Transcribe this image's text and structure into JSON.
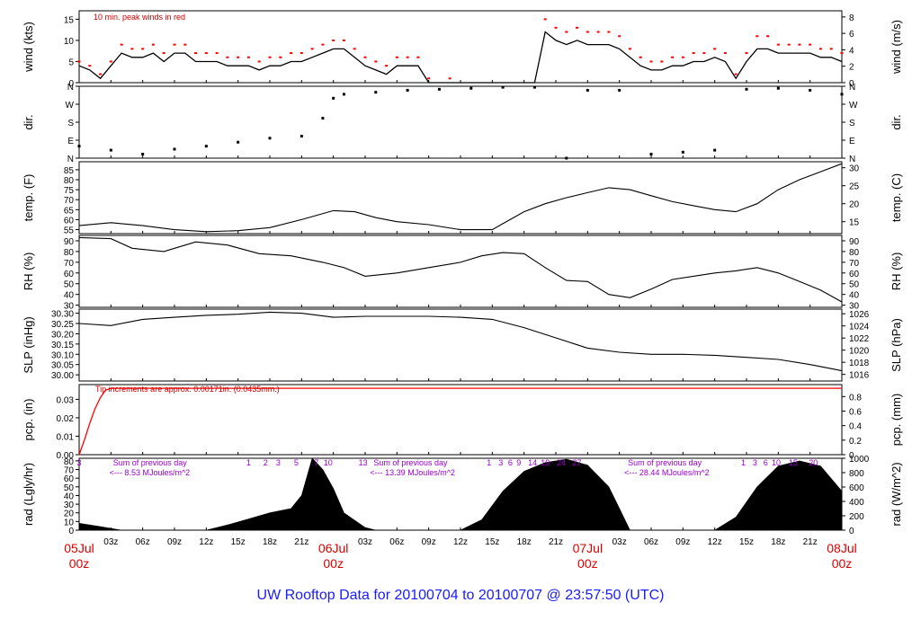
{
  "title": "UW Rooftop Data for 20100704  to  20100707 @ 23:57:50  (UTC)",
  "x_axis": {
    "range_hours": [
      0,
      72
    ],
    "hour_ticks": [
      "03z",
      "06z",
      "09z",
      "12z",
      "15z",
      "18z",
      "21z",
      "03z",
      "06z",
      "09z",
      "12z",
      "15z",
      "18z",
      "21z",
      "03z",
      "06z",
      "09z",
      "12z",
      "15z",
      "18z",
      "21z"
    ],
    "date_ticks": [
      {
        "date": "05Jul",
        "time": "00z"
      },
      {
        "date": "06Jul",
        "time": "00z"
      },
      {
        "date": "07Jul",
        "time": "00z"
      },
      {
        "date": "08Jul",
        "time": "00z"
      }
    ]
  },
  "colors": {
    "frame": "#000000",
    "peak": "#ff0000",
    "purple": "#9900cc",
    "title": "#1a1aff",
    "dates": "#dd0000"
  },
  "chart_data": [
    {
      "type": "line",
      "id": "wind",
      "ylabel": "wind (kts)",
      "ylabel_right": "wind (m/s)",
      "ylim": [
        0,
        17
      ],
      "yticks": [
        0,
        5,
        10,
        15
      ],
      "ylim_right": [
        0,
        8.75
      ],
      "yticks_right": [
        0,
        2,
        4,
        6,
        8
      ],
      "annotation": "10 min. peak winds in red",
      "x": [
        0,
        1,
        2,
        3,
        4,
        5,
        6,
        7,
        8,
        9,
        10,
        11,
        12,
        13,
        14,
        15,
        16,
        17,
        18,
        19,
        20,
        21,
        22,
        23,
        24,
        25,
        26,
        27,
        28,
        29,
        30,
        31,
        32,
        33,
        34,
        35,
        36,
        37,
        38,
        39,
        40,
        41,
        42,
        43,
        44,
        45,
        46,
        47,
        48,
        49,
        50,
        51,
        52,
        53,
        54,
        55,
        56,
        57,
        58,
        59,
        60,
        61,
        62,
        63,
        64,
        65,
        66,
        67,
        68,
        69,
        70,
        71,
        72
      ],
      "series": [
        {
          "role": "mean",
          "values": [
            4,
            3,
            1,
            4,
            7,
            6,
            6,
            7,
            5,
            7,
            7,
            5,
            5,
            5,
            4,
            4,
            4,
            3,
            4,
            4,
            5,
            5,
            6,
            7,
            8,
            8,
            6,
            4,
            3,
            2,
            4,
            4,
            4,
            0,
            0,
            0,
            0,
            0,
            0,
            0,
            0,
            0,
            0,
            0,
            12,
            10,
            9,
            10,
            9,
            9,
            9,
            8,
            6,
            4,
            3,
            3,
            4,
            4,
            5,
            5,
            6,
            5,
            1,
            5,
            8,
            8,
            7,
            7,
            7,
            7,
            6,
            6,
            5
          ]
        },
        {
          "role": "peak",
          "values": [
            5,
            4,
            2,
            5,
            9,
            8,
            8,
            9,
            7,
            9,
            9,
            7,
            7,
            7,
            6,
            6,
            6,
            5,
            6,
            6,
            7,
            7,
            8,
            9,
            10,
            10,
            8,
            6,
            5,
            4,
            6,
            6,
            6,
            1,
            0,
            1,
            0,
            0,
            0,
            0,
            0,
            0,
            0,
            0,
            15,
            13,
            12,
            13,
            12,
            12,
            12,
            11,
            8,
            6,
            5,
            5,
            6,
            6,
            7,
            7,
            8,
            7,
            2,
            7,
            11,
            11,
            9,
            9,
            9,
            9,
            8,
            8,
            7
          ]
        }
      ]
    },
    {
      "type": "scatter",
      "id": "dir",
      "ylabel": "dir.",
      "ylabel_right": "dir.",
      "yticks": [
        "N",
        "E",
        "S",
        "W",
        "N"
      ],
      "ylim": [
        0,
        360
      ],
      "x": [
        0,
        3,
        6,
        9,
        12,
        15,
        18,
        21,
        23,
        24,
        25,
        28,
        31,
        34,
        37,
        40,
        43,
        46,
        48,
        51,
        54,
        57,
        60,
        63,
        66,
        69,
        72
      ],
      "values": [
        60,
        40,
        20,
        45,
        60,
        80,
        100,
        110,
        200,
        300,
        320,
        330,
        340,
        345,
        350,
        355,
        355,
        0,
        340,
        340,
        20,
        30,
        40,
        345,
        350,
        340,
        320
      ]
    },
    {
      "type": "line",
      "id": "temp",
      "ylabel": "temp. (F)",
      "ylabel_right": "temp. (C)",
      "ylim": [
        53,
        89
      ],
      "yticks": [
        55,
        60,
        65,
        70,
        75,
        80,
        85
      ],
      "ylim_right": [
        11.67,
        31.67
      ],
      "yticks_right": [
        15,
        20,
        25,
        30
      ],
      "x": [
        0,
        3,
        6,
        9,
        12,
        15,
        18,
        21,
        24,
        26,
        28,
        30,
        33,
        36,
        39,
        40,
        42,
        44,
        46,
        48,
        50,
        52,
        54,
        56,
        58,
        60,
        62,
        64,
        66,
        68,
        70,
        72
      ],
      "values": [
        57,
        58.5,
        57,
        55,
        54,
        54.5,
        56,
        60,
        64.5,
        64,
        61,
        59,
        57.5,
        55,
        55,
        58,
        64,
        68,
        71,
        73.5,
        76,
        75,
        72,
        69,
        67,
        65,
        64,
        68,
        75,
        80,
        84,
        88
      ]
    },
    {
      "type": "line",
      "id": "rh",
      "ylabel": "RH (%)",
      "ylabel_right": "RH (%)",
      "ylim": [
        28,
        95
      ],
      "yticks": [
        30,
        40,
        50,
        60,
        70,
        80,
        90
      ],
      "yticks_right": [
        30,
        40,
        50,
        60,
        70,
        80,
        90
      ],
      "x": [
        0,
        3,
        5,
        8,
        11,
        14,
        17,
        20,
        23,
        25,
        27,
        30,
        33,
        36,
        38,
        40,
        42,
        44,
        46,
        48,
        50,
        52,
        54,
        56,
        58,
        60,
        62,
        64,
        66,
        68,
        70,
        72
      ],
      "values": [
        93,
        92,
        83,
        80,
        89,
        86,
        78,
        76,
        70,
        65,
        57,
        60,
        65,
        70,
        76,
        79,
        78,
        65,
        53,
        52,
        40,
        37,
        45,
        54,
        57,
        60,
        62,
        65,
        60,
        52,
        44,
        33
      ]
    },
    {
      "type": "line",
      "id": "slp",
      "ylabel": "SLP (inHg)",
      "ylabel_right": "SLP (hPa)",
      "ylim": [
        29.97,
        30.32
      ],
      "yticks": [
        30.0,
        30.05,
        30.1,
        30.15,
        30.2,
        30.25,
        30.3
      ],
      "ylim_right": [
        1014.91,
        1026.77
      ],
      "yticks_right": [
        1016,
        1018,
        1020,
        1022,
        1024,
        1026
      ],
      "x": [
        0,
        3,
        6,
        9,
        12,
        15,
        18,
        21,
        24,
        27,
        30,
        33,
        36,
        39,
        42,
        45,
        48,
        51,
        54,
        57,
        60,
        63,
        66,
        69,
        72
      ],
      "values": [
        30.25,
        30.24,
        30.27,
        30.28,
        30.29,
        30.295,
        30.305,
        30.3,
        30.28,
        30.285,
        30.285,
        30.285,
        30.28,
        30.27,
        30.23,
        30.18,
        30.13,
        30.11,
        30.1,
        30.1,
        30.095,
        30.085,
        30.075,
        30.05,
        30.02
      ]
    },
    {
      "type": "line",
      "id": "pcp",
      "ylabel": "pcp. (in)",
      "ylabel_right": "pcp. (mm)",
      "ylim": [
        0,
        0.038
      ],
      "yticks": [
        0.0,
        0.01,
        0.02,
        0.03
      ],
      "ylim_right": [
        0,
        0.965
      ],
      "yticks_right": [
        0,
        0.2,
        0.4,
        0.6,
        0.8
      ],
      "annotation": "Tip increments are approx. 0.00171in. (0.0435mm.)",
      "x": [
        0,
        0.5,
        1,
        1.5,
        2,
        2.5,
        3,
        72
      ],
      "values": [
        0,
        0.008,
        0.017,
        0.025,
        0.031,
        0.035,
        0.036,
        0.036
      ]
    },
    {
      "type": "area",
      "id": "rad",
      "ylabel": "rad (Lgly/hr)",
      "ylabel_right": "rad (W/m^2)",
      "ylim": [
        0,
        83
      ],
      "yticks": [
        0,
        10,
        20,
        30,
        40,
        50,
        60,
        70,
        80
      ],
      "ylim_right": [
        0,
        1000
      ],
      "yticks_right": [
        0,
        200,
        400,
        600,
        800,
        1000
      ],
      "x": [
        0,
        2,
        4,
        12,
        14,
        16,
        18,
        20,
        21,
        22,
        23,
        24,
        25,
        27,
        28,
        36,
        38,
        40,
        42,
        44,
        46,
        48,
        50,
        51,
        52,
        60,
        62,
        64,
        66,
        68,
        70,
        72
      ],
      "values": [
        8,
        4,
        0,
        0,
        6,
        13,
        20,
        25,
        40,
        88,
        70,
        48,
        20,
        3,
        0,
        0,
        12,
        45,
        68,
        78,
        82,
        75,
        50,
        25,
        0,
        0,
        15,
        50,
        74,
        80,
        74,
        45
      ],
      "top_labels": [
        {
          "text": "3",
          "x": 0
        },
        {
          "text": "1",
          "x": 16
        },
        {
          "text": "2",
          "x": 17.6
        },
        {
          "text": "3",
          "x": 18.8
        },
        {
          "text": "5",
          "x": 20.5
        },
        {
          "text": "7",
          "x": 22.4
        },
        {
          "text": "10",
          "x": 23.5
        },
        {
          "text": "13",
          "x": 26.8
        },
        {
          "text": "1",
          "x": 38.7
        },
        {
          "text": "3",
          "x": 39.8
        },
        {
          "text": "6",
          "x": 40.7
        },
        {
          "text": "9",
          "x": 41.5
        },
        {
          "text": "14",
          "x": 42.8
        },
        {
          "text": "19",
          "x": 44.0
        },
        {
          "text": "24",
          "x": 45.5
        },
        {
          "text": "27",
          "x": 47.0
        },
        {
          "text": "1",
          "x": 62.7
        },
        {
          "text": "3",
          "x": 63.8
        },
        {
          "text": "6",
          "x": 64.8
        },
        {
          "text": "10",
          "x": 65.8
        },
        {
          "text": "15",
          "x": 67.4
        },
        {
          "text": "20",
          "x": 69.3
        }
      ],
      "daily_sums": [
        {
          "line1": "Sum of previous day",
          "line2": "<--- 8.53 MJoules/m^2",
          "x": 3.2
        },
        {
          "line1": "Sum of previous day",
          "line2": "<--- 13.39 MJoules/m^2",
          "x": 27.8
        },
        {
          "line1": "Sum of previous day",
          "line2": "<--- 28.44 MJoules/m^2",
          "x": 51.8
        }
      ]
    }
  ]
}
